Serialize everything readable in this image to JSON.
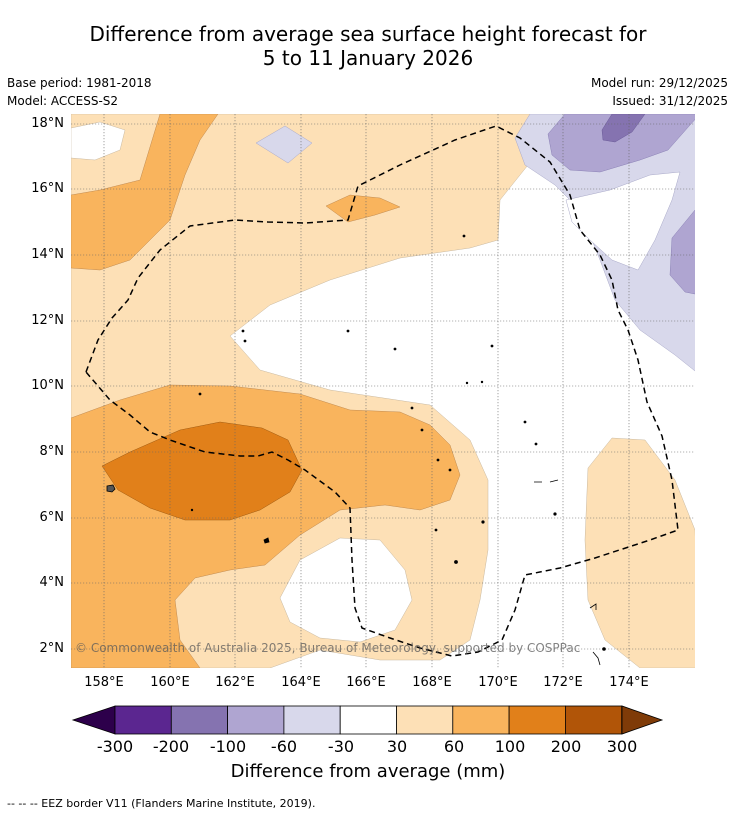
{
  "header": {
    "title_line1": "Difference from average sea surface height forecast for",
    "title_line2": "5 to 11 January 2026",
    "base_period": "Base period: 1981-2018",
    "model": "Model: ACCESS-S2",
    "model_run": "Model run: 29/12/2025",
    "issued": "Issued: 31/12/2025"
  },
  "map": {
    "lat_labels": [
      "18°N",
      "16°N",
      "14°N",
      "12°N",
      "10°N",
      "8°N",
      "6°N",
      "4°N",
      "2°N"
    ],
    "lon_labels": [
      "158°E",
      "160°E",
      "162°E",
      "164°E",
      "166°E",
      "168°E",
      "170°E",
      "172°E",
      "174°E"
    ],
    "copyright": "© Commonwealth of Australia 2025, Bureau of Meteorology, supported by COSPPac"
  },
  "colorbar": {
    "ticks": [
      "-300",
      "-200",
      "-100",
      "-60",
      "-30",
      "30",
      "60",
      "100",
      "200",
      "300"
    ],
    "title": "Difference from average (mm)",
    "colors": [
      "#5b2690",
      "#8573b0",
      "#afa5d1",
      "#d8d8eb",
      "#ffffff",
      "#fde0b6",
      "#f9b45d",
      "#e1801a",
      "#b15508"
    ],
    "extend_low_color": "#2d004b",
    "extend_high_color": "#7f3b08"
  },
  "legend": {
    "eez_text": "--  --  -- EEZ border V11 (Flanders Marine Institute, 2019)."
  }
}
